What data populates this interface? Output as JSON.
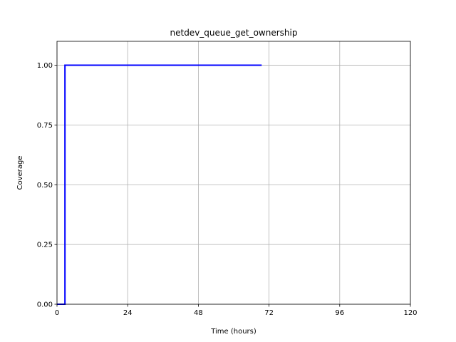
{
  "chart_data": {
    "type": "line",
    "title": "netdev_queue_get_ownership",
    "xlabel": "Time (hours)",
    "ylabel": "Coverage",
    "xlim": [
      0,
      120
    ],
    "ylim": [
      0,
      1.1
    ],
    "xticks": [
      0,
      24,
      48,
      72,
      96,
      120
    ],
    "xtick_labels": [
      "0",
      "24",
      "48",
      "72",
      "96",
      "120"
    ],
    "yticks": [
      0,
      0.25,
      0.5,
      0.75,
      1.0
    ],
    "ytick_labels": [
      "0.00",
      "0.25",
      "0.50",
      "0.75",
      "1.00"
    ],
    "grid": true,
    "legend": "none",
    "series": [
      {
        "color": "#0000ff",
        "style": "step",
        "x": [
          0,
          2.7,
          2.7,
          69.5
        ],
        "y": [
          0,
          0,
          1.0,
          1.0
        ]
      }
    ]
  }
}
